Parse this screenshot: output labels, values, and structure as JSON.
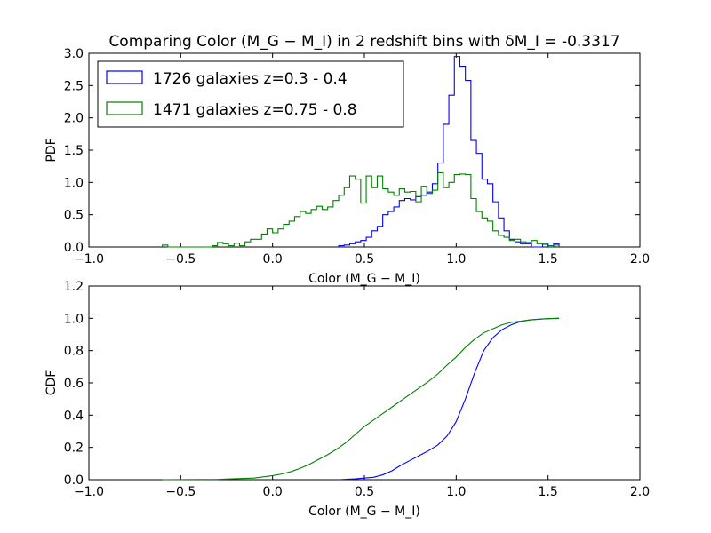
{
  "chart_data": [
    {
      "type": "histogram",
      "title": "Comparing Color (M_G − M_I) in 2 redshift bins with δM_I = -0.3317",
      "xlabel": "Color (M_G − M_I)",
      "ylabel": "PDF",
      "xlim": [
        -1.0,
        2.0
      ],
      "ylim": [
        0.0,
        3.0
      ],
      "xticks": [
        "−1.0",
        "−0.5",
        "0.0",
        "0.5",
        "1.0",
        "1.5",
        "2.0"
      ],
      "yticks": [
        "0.0",
        "0.5",
        "1.0",
        "1.5",
        "2.0",
        "2.5",
        "3.0"
      ],
      "grid": false,
      "legend_position": "upper-left",
      "bin_width": 0.03,
      "series": [
        {
          "name": "1726 galaxies z=0.3 - 0.4",
          "color": "#0000ff",
          "edges": [
            0.36,
            0.39,
            0.42,
            0.45,
            0.48,
            0.51,
            0.54,
            0.57,
            0.6,
            0.63,
            0.66,
            0.69,
            0.72,
            0.75,
            0.78,
            0.81,
            0.84,
            0.87,
            0.9,
            0.93,
            0.96,
            0.99,
            1.02,
            1.05,
            1.08,
            1.11,
            1.14,
            1.17,
            1.2,
            1.23,
            1.26,
            1.29,
            1.32,
            1.35,
            1.38,
            1.41,
            1.44,
            1.47,
            1.5,
            1.53,
            1.56
          ],
          "values": [
            0.02,
            0.03,
            0.05,
            0.08,
            0.1,
            0.15,
            0.25,
            0.32,
            0.5,
            0.55,
            0.62,
            0.72,
            0.75,
            0.73,
            0.78,
            0.8,
            0.85,
            0.98,
            1.3,
            1.9,
            2.35,
            2.95,
            2.8,
            2.58,
            1.65,
            1.45,
            1.05,
            0.98,
            0.7,
            0.45,
            0.25,
            0.12,
            0.08,
            0.05,
            0.05,
            0.0,
            0.0,
            0.06,
            0.0,
            0.05
          ]
        },
        {
          "name": "1471 galaxies z=0.75 - 0.8",
          "color": "#008000",
          "edges": [
            -0.6,
            -0.57,
            -0.54,
            -0.51,
            -0.48,
            -0.45,
            -0.42,
            -0.39,
            -0.36,
            -0.33,
            -0.3,
            -0.27,
            -0.24,
            -0.21,
            -0.18,
            -0.15,
            -0.12,
            -0.09,
            -0.06,
            -0.03,
            0.0,
            0.03,
            0.06,
            0.09,
            0.12,
            0.15,
            0.18,
            0.21,
            0.24,
            0.27,
            0.3,
            0.33,
            0.36,
            0.39,
            0.42,
            0.45,
            0.48,
            0.51,
            0.54,
            0.57,
            0.6,
            0.63,
            0.66,
            0.69,
            0.72,
            0.75,
            0.78,
            0.81,
            0.84,
            0.87,
            0.9,
            0.93,
            0.96,
            0.99,
            1.02,
            1.05,
            1.08,
            1.11,
            1.14,
            1.17,
            1.2,
            1.23,
            1.26,
            1.29,
            1.32,
            1.35,
            1.38,
            1.41,
            1.44,
            1.47,
            1.5,
            1.53,
            1.56
          ],
          "values": [
            0.03,
            0.0,
            0.0,
            0.0,
            0.0,
            0.0,
            0.0,
            0.0,
            0.0,
            0.02,
            0.07,
            0.05,
            0.02,
            0.06,
            0.02,
            0.08,
            0.12,
            0.12,
            0.2,
            0.28,
            0.22,
            0.28,
            0.35,
            0.4,
            0.47,
            0.55,
            0.52,
            0.58,
            0.63,
            0.58,
            0.62,
            0.72,
            0.8,
            0.92,
            1.1,
            1.05,
            0.68,
            1.1,
            0.92,
            1.1,
            0.9,
            0.85,
            0.8,
            0.9,
            0.85,
            0.86,
            0.7,
            0.94,
            0.83,
            0.88,
            1.15,
            0.92,
            1.0,
            1.12,
            1.13,
            1.12,
            0.75,
            0.55,
            0.45,
            0.4,
            0.25,
            0.18,
            0.15,
            0.1,
            0.12,
            0.08,
            0.07,
            0.1,
            0.05,
            0.04,
            0.02,
            0.03
          ]
        }
      ]
    },
    {
      "type": "line",
      "title": "",
      "xlabel": "Color (M_G − M_I)",
      "ylabel": "CDF",
      "xlim": [
        -1.0,
        2.0
      ],
      "ylim": [
        0.0,
        1.2
      ],
      "xticks": [
        "−1.0",
        "−0.5",
        "0.0",
        "0.5",
        "1.0",
        "1.5",
        "2.0"
      ],
      "yticks": [
        "0.0",
        "0.2",
        "0.4",
        "0.6",
        "0.8",
        "1.0",
        "1.2"
      ],
      "grid": false,
      "series": [
        {
          "color": "#0000ff",
          "x": [
            0.36,
            0.45,
            0.55,
            0.6,
            0.65,
            0.7,
            0.75,
            0.8,
            0.85,
            0.9,
            0.95,
            1.0,
            1.05,
            1.1,
            1.15,
            1.2,
            1.25,
            1.3,
            1.35,
            1.4,
            1.45,
            1.5,
            1.56
          ],
          "y": [
            0.0,
            0.005,
            0.015,
            0.03,
            0.055,
            0.09,
            0.12,
            0.15,
            0.18,
            0.215,
            0.27,
            0.36,
            0.5,
            0.66,
            0.8,
            0.88,
            0.93,
            0.96,
            0.98,
            0.99,
            0.995,
            0.998,
            1.0
          ]
        },
        {
          "color": "#008000",
          "x": [
            -0.6,
            -0.3,
            -0.1,
            0.0,
            0.05,
            0.1,
            0.15,
            0.2,
            0.25,
            0.3,
            0.35,
            0.4,
            0.45,
            0.5,
            0.55,
            0.6,
            0.65,
            0.7,
            0.75,
            0.8,
            0.85,
            0.9,
            0.95,
            1.0,
            1.05,
            1.1,
            1.15,
            1.2,
            1.25,
            1.3,
            1.4,
            1.5,
            1.56
          ],
          "y": [
            0.0,
            0.002,
            0.01,
            0.025,
            0.035,
            0.05,
            0.07,
            0.095,
            0.125,
            0.155,
            0.19,
            0.23,
            0.28,
            0.33,
            0.37,
            0.41,
            0.45,
            0.49,
            0.53,
            0.57,
            0.61,
            0.655,
            0.71,
            0.76,
            0.82,
            0.87,
            0.91,
            0.935,
            0.96,
            0.975,
            0.99,
            0.998,
            1.0
          ]
        }
      ]
    }
  ]
}
